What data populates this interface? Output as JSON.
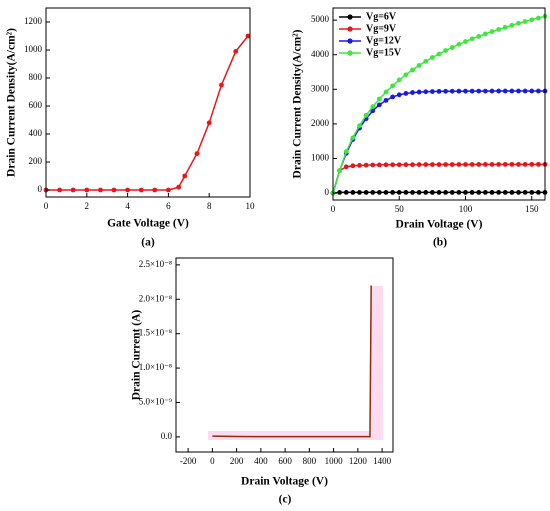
{
  "chart_data": [
    {
      "type": "line",
      "caption": "(a)",
      "xlabel": "Gate Voltage (V)",
      "ylabel": "Drain Current Density(A/cm²)",
      "x": [
        0,
        0.67,
        1.33,
        2,
        2.67,
        3.33,
        4,
        4.67,
        5.33,
        6,
        6.5,
        6.8,
        7.4,
        8,
        8.6,
        9.3,
        9.9
      ],
      "values": [
        0,
        0,
        0,
        0,
        0,
        0,
        0,
        0,
        0,
        0,
        20,
        100,
        260,
        480,
        750,
        990,
        1100
      ],
      "color": "#e8161b",
      "markers": true,
      "xlim": [
        0,
        10
      ],
      "xticks": [
        0,
        2,
        4,
        6,
        8,
        10
      ],
      "ylim": [
        -50,
        1300
      ],
      "yticks": [
        0,
        200,
        400,
        600,
        800,
        1000,
        1200
      ]
    },
    {
      "type": "line",
      "caption": "(b)",
      "xlabel": "Drain Voltage (V)",
      "ylabel": "Drain Current Density(A/cm²)",
      "x": [
        0,
        5,
        10,
        15,
        20,
        25,
        30,
        35,
        40,
        45,
        50,
        55,
        60,
        65,
        70,
        75,
        80,
        85,
        90,
        95,
        100,
        105,
        110,
        115,
        120,
        125,
        130,
        135,
        140,
        145,
        150,
        155,
        160
      ],
      "series": [
        {
          "name": "Vg=6V",
          "color": "#000000",
          "values": [
            0,
            20,
            20,
            20,
            20,
            20,
            20,
            20,
            20,
            20,
            20,
            20,
            20,
            20,
            20,
            20,
            20,
            20,
            20,
            20,
            20,
            20,
            20,
            20,
            20,
            20,
            20,
            20,
            20,
            20,
            20,
            20,
            20
          ]
        },
        {
          "name": "Vg=9V",
          "color": "#e8161b",
          "values": [
            0,
            650,
            760,
            790,
            800,
            808,
            812,
            815,
            818,
            820,
            820,
            822,
            822,
            824,
            824,
            825,
            825,
            826,
            826,
            827,
            827,
            828,
            828,
            828,
            829,
            829,
            830,
            830,
            830,
            830,
            830,
            830,
            830
          ]
        },
        {
          "name": "Vg=12V",
          "color": "#1a1ae6",
          "values": [
            0,
            650,
            1150,
            1550,
            1880,
            2150,
            2380,
            2550,
            2680,
            2780,
            2840,
            2880,
            2905,
            2920,
            2930,
            2935,
            2940,
            2942,
            2944,
            2945,
            2946,
            2947,
            2948,
            2948,
            2949,
            2949,
            2950,
            2950,
            2950,
            2950,
            2950,
            2950,
            2950
          ]
        },
        {
          "name": "Vg=15V",
          "color": "#3ee63e",
          "values": [
            0,
            650,
            1200,
            1600,
            1950,
            2250,
            2500,
            2720,
            2920,
            3100,
            3270,
            3420,
            3560,
            3690,
            3810,
            3920,
            4020,
            4120,
            4210,
            4300,
            4380,
            4460,
            4530,
            4600,
            4670,
            4730,
            4790,
            4850,
            4910,
            4960,
            5010,
            5060,
            5110
          ]
        }
      ],
      "markers": true,
      "legend": "upper left",
      "xlim": [
        0,
        160
      ],
      "xticks": [
        0,
        50,
        100,
        150
      ],
      "ylim": [
        -200,
        5350
      ],
      "yticks": [
        0,
        1000,
        2000,
        3000,
        4000,
        5000
      ]
    },
    {
      "type": "line",
      "caption": "(c)",
      "xlabel": "Drain Voltage (V)",
      "ylabel": "Drain Current (A)",
      "x": [
        0,
        200,
        400,
        600,
        800,
        1000,
        1200,
        1300,
        1310
      ],
      "values": [
        1e-10,
        5e-11,
        4e-11,
        3e-11,
        3e-11,
        3e-11,
        3e-11,
        3e-11,
        2.2e-08
      ],
      "color": "#8b2d0f",
      "markers": false,
      "xlim": [
        -300,
        1490
      ],
      "xticks": [
        -200,
        0,
        200,
        400,
        600,
        800,
        1000,
        1200,
        1400
      ],
      "ylim": [
        -2.2e-09,
        2.6e-08
      ],
      "yticks": [
        {
          "value": 0,
          "label": "0.0"
        },
        {
          "value": 5e-09,
          "label": "5.0×10⁻⁹"
        },
        {
          "value": 1e-08,
          "label": "1.0×10⁻⁸"
        },
        {
          "value": 1.5e-08,
          "label": "1.5×10⁻⁸"
        },
        {
          "value": 2e-08,
          "label": "2.0×10⁻⁸"
        },
        {
          "value": 2.5e-08,
          "label": "2.5×10⁻⁸"
        }
      ]
    }
  ]
}
